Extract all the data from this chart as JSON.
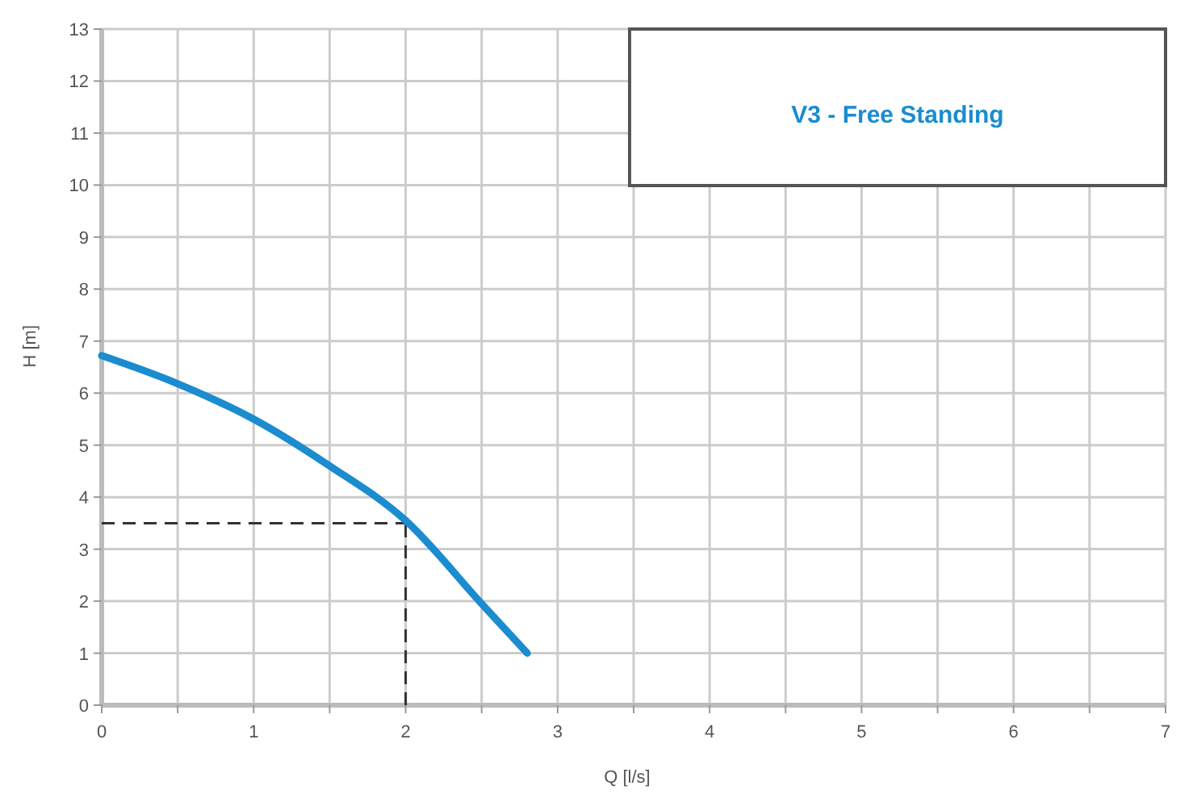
{
  "chart_data": {
    "type": "line",
    "title": "V3 - Free Standing",
    "xlabel": "Q [l/s]",
    "ylabel": "H [m]",
    "x": [
      0,
      0.5,
      1,
      1.5,
      2,
      2.5,
      2.8
    ],
    "series": [
      {
        "color": "#1a8ccf",
        "values": [
          6.72,
          6.18,
          5.5,
          4.6,
          3.55,
          1.95,
          1.0
        ]
      }
    ],
    "xlim": [
      0,
      7
    ],
    "xticks": [
      0,
      {
        "value": 0.5,
        "label": null
      },
      1,
      {
        "value": 1.5,
        "label": null
      },
      2,
      {
        "value": 2.5,
        "label": null
      },
      3,
      {
        "value": 3.5,
        "label": null
      },
      4,
      {
        "value": 4.5,
        "label": null
      },
      5,
      {
        "value": 5.5,
        "label": null
      },
      6,
      {
        "value": 6.5,
        "label": null
      },
      7
    ],
    "ylim": [
      0,
      13
    ],
    "yticks": [
      0,
      1,
      2,
      3,
      4,
      5,
      6,
      7,
      8,
      9,
      10,
      11,
      12,
      13
    ],
    "grid": true,
    "marker": "none",
    "line_style": "solid",
    "ref_lines": [
      {
        "axis": "x",
        "value": 2,
        "line_style": "dashed",
        "color": "#333333"
      },
      {
        "axis": "y",
        "value": 3.5,
        "line_style": "dashed",
        "color": "#333333"
      }
    ]
  }
}
